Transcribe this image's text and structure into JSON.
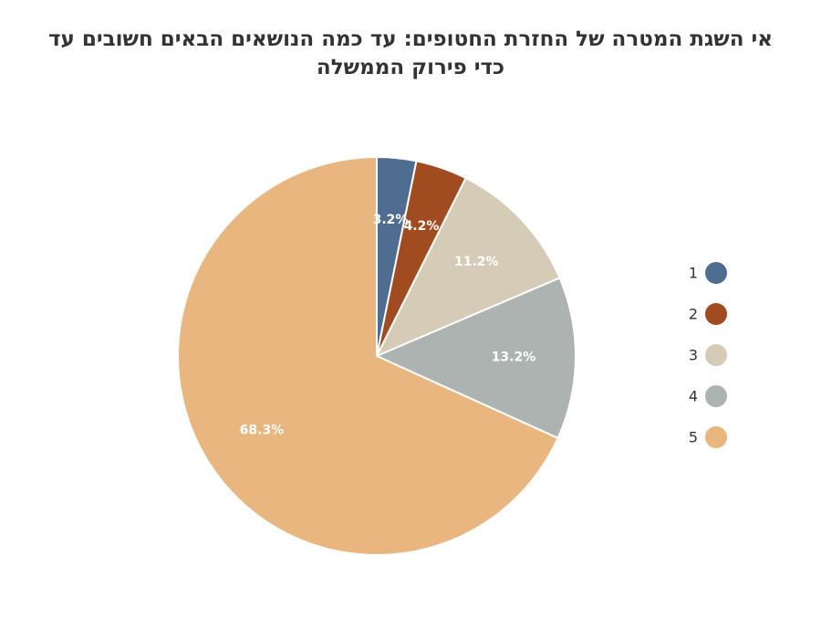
{
  "chart_data": {
    "type": "pie",
    "title": "אי השגת המטרה של החזרת החטופים: עד כמה הנושאים הבאים חשובים עד כדי פירוק הממשלה",
    "categories": [
      "1",
      "2",
      "3",
      "4",
      "5"
    ],
    "values": [
      3.2,
      4.2,
      11.2,
      13.2,
      68.3
    ],
    "value_labels": [
      "3.2%",
      "4.2%",
      "11.2%",
      "13.2%",
      "68.3%"
    ],
    "colors": [
      "#4f6d91",
      "#a04b20",
      "#d6cbb6",
      "#adb3b1",
      "#e9b67f"
    ],
    "start_angle": "12 o'clock",
    "direction": "clockwise",
    "legend": {
      "position": "right",
      "entries": [
        "1",
        "2",
        "3",
        "4",
        "5"
      ]
    }
  }
}
